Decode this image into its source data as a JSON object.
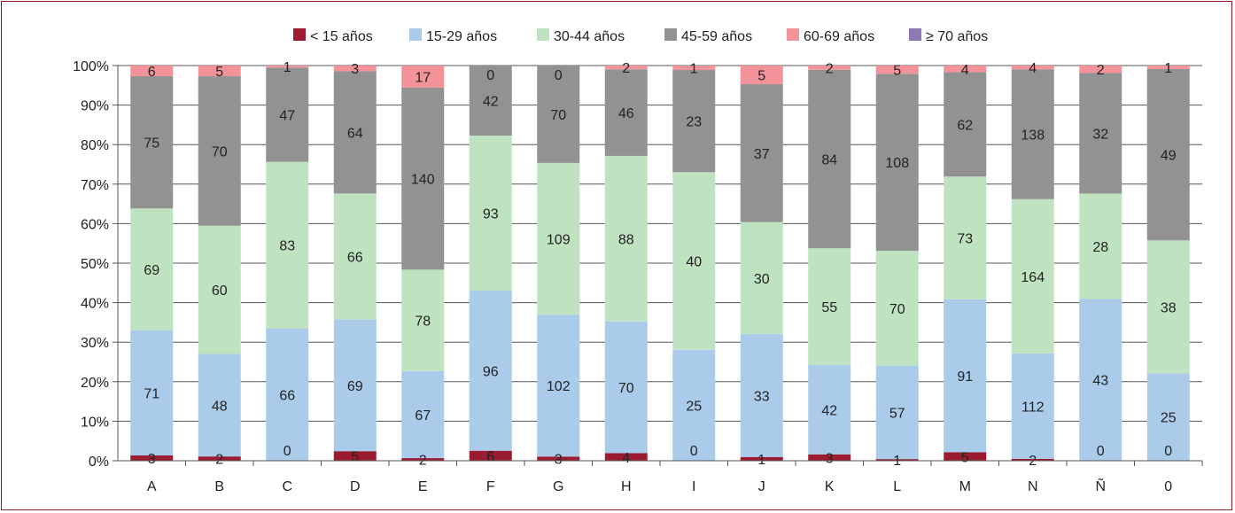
{
  "chart_data": {
    "type": "bar",
    "stacked": "percent",
    "categories": [
      "A",
      "B",
      "C",
      "D",
      "E",
      "F",
      "G",
      "H",
      "I",
      "J",
      "K",
      "L",
      "M",
      "N",
      "Ñ",
      "0"
    ],
    "series": [
      {
        "name": "< 15 años",
        "color": "#9b1b30",
        "values": [
          3,
          2,
          0,
          5,
          2,
          6,
          3,
          4,
          0,
          1,
          3,
          1,
          5,
          2,
          0,
          0
        ]
      },
      {
        "name": "15-29 años",
        "color": "#aacbea",
        "values": [
          71,
          48,
          66,
          69,
          67,
          96,
          102,
          70,
          25,
          33,
          42,
          57,
          91,
          112,
          43,
          25
        ]
      },
      {
        "name": "30-44 años",
        "color": "#bfe3c0",
        "values": [
          69,
          60,
          83,
          66,
          78,
          93,
          109,
          88,
          40,
          30,
          55,
          70,
          73,
          164,
          28,
          38
        ]
      },
      {
        "name": "45-59 años",
        "color": "#929292",
        "values": [
          75,
          70,
          47,
          64,
          140,
          42,
          70,
          46,
          23,
          37,
          84,
          108,
          62,
          138,
          32,
          49
        ]
      },
      {
        "name": "60-69 años",
        "color": "#f2939a",
        "values": [
          6,
          5,
          1,
          3,
          17,
          0,
          0,
          2,
          1,
          5,
          2,
          5,
          4,
          4,
          2,
          1
        ]
      },
      {
        "name": "≥ 70 años",
        "color": "#8e7ab3",
        "values": [
          0,
          0,
          0,
          0,
          0,
          0,
          0,
          0,
          0,
          0,
          0,
          0,
          0,
          0,
          0,
          0
        ]
      }
    ],
    "label_series": [
      0,
      1,
      2,
      3,
      4
    ],
    "y_ticks": [
      "0%",
      "10%",
      "20%",
      "30%",
      "40%",
      "50%",
      "60%",
      "70%",
      "80%",
      "90%",
      "100%"
    ],
    "ylim": [
      0,
      100
    ],
    "legend_position": "top",
    "grid": true
  }
}
